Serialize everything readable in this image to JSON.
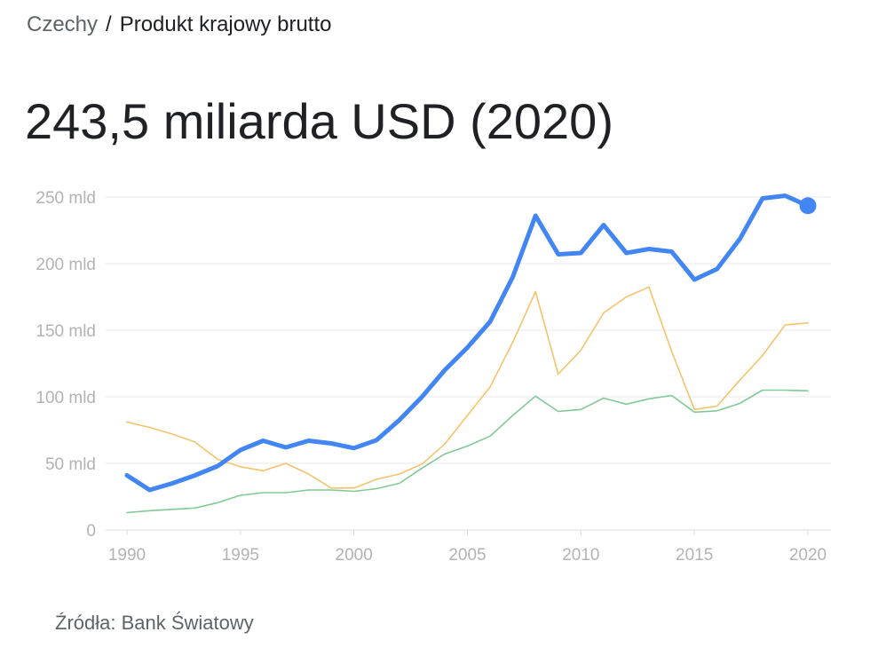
{
  "breadcrumb": {
    "country": "Czechy",
    "separator": "/",
    "indicator": "Produkt krajowy brutto"
  },
  "headline": "243,5 miliarda USD (2020)",
  "source": "Źródła: Bank Światowy",
  "colors": {
    "series_main": "#4285f4",
    "series_orange": "#f6c26b",
    "series_green": "#81c995",
    "grid": "#e8eaed",
    "tick_text": "#b3b3b3"
  },
  "chart_data": {
    "type": "line",
    "x": [
      1990,
      1991,
      1992,
      1993,
      1994,
      1995,
      1996,
      1997,
      1998,
      1999,
      2000,
      2001,
      2002,
      2003,
      2004,
      2005,
      2006,
      2007,
      2008,
      2009,
      2010,
      2011,
      2012,
      2013,
      2014,
      2015,
      2016,
      2017,
      2018,
      2019,
      2020
    ],
    "xlim": [
      1990,
      2020
    ],
    "ylim": [
      0,
      250
    ],
    "x_ticks": [
      {
        "value": 1990,
        "label": "1990"
      },
      {
        "value": 1995,
        "label": "1995"
      },
      {
        "value": 2000,
        "label": "2000"
      },
      {
        "value": 2005,
        "label": "2005"
      },
      {
        "value": 2010,
        "label": "2010"
      },
      {
        "value": 2015,
        "label": "2015"
      },
      {
        "value": 2020,
        "label": "2020"
      }
    ],
    "y_ticks": [
      {
        "value": 0,
        "label": "0"
      },
      {
        "value": 50,
        "label": "50 mld"
      },
      {
        "value": 100,
        "label": "100 mld"
      },
      {
        "value": 150,
        "label": "150 mld"
      },
      {
        "value": 200,
        "label": "200 mld"
      },
      {
        "value": 250,
        "label": "250 mld"
      }
    ],
    "grid": true,
    "series": [
      {
        "key": "green",
        "color": "#81c995",
        "width": 1.6,
        "values": [
          13,
          14.5,
          15.5,
          16.5,
          20.5,
          26,
          28,
          28,
          30,
          30,
          29,
          31,
          35,
          46.5,
          57,
          63,
          70.5,
          86,
          100.5,
          89,
          90.5,
          99,
          94.5,
          98.5,
          101,
          88.5,
          89.5,
          95,
          105,
          105,
          104.5
        ]
      },
      {
        "key": "orange",
        "color": "#f6c26b",
        "width": 1.6,
        "values": [
          81,
          77,
          72,
          66,
          53,
          47.5,
          44.5,
          50,
          42,
          31.5,
          31.5,
          38,
          42,
          49.5,
          64.5,
          86,
          107.5,
          141,
          179,
          117,
          135,
          163,
          175,
          182.5,
          134,
          90.5,
          93,
          112.5,
          131,
          154,
          155.5
        ]
      },
      {
        "key": "main",
        "color": "#4285f4",
        "width": 5,
        "values": [
          41,
          30,
          35,
          41,
          48,
          60,
          67,
          62,
          67,
          65,
          61.5,
          67.5,
          82.5,
          100,
          120,
          137,
          156.5,
          190,
          236,
          207,
          208,
          229,
          208,
          211,
          209,
          188,
          196,
          218.5,
          249,
          251,
          243.5
        ]
      }
    ],
    "highlight": {
      "x": 2020,
      "value": 243.5,
      "series": "main"
    }
  }
}
